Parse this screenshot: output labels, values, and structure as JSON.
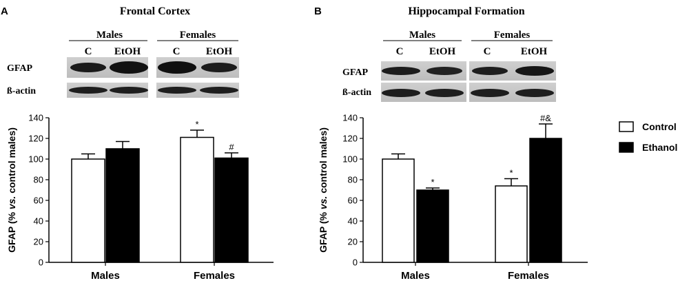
{
  "panels": [
    {
      "letter": "A",
      "title": "Frontal Cortex",
      "blot": {
        "groups": [
          "Males",
          "Females"
        ],
        "lanes": [
          "C",
          "EtOH",
          "C",
          "EtOH"
        ],
        "rows": [
          "GFAP",
          "ß-actin"
        ]
      }
    },
    {
      "letter": "B",
      "title": "Hippocampal Formation",
      "blot": {
        "groups": [
          "Males",
          "Females"
        ],
        "lanes": [
          "C",
          "EtOH",
          "C",
          "EtOH"
        ],
        "rows": [
          "GFAP",
          "ß-actin"
        ]
      }
    }
  ],
  "ylabel": {
    "prefix": "GFAP (% ",
    "italic": "vs.",
    "suffix": " control males)"
  },
  "legend": {
    "items": [
      {
        "label": "Control",
        "fill": "#ffffff"
      },
      {
        "label": "Ethanol",
        "fill": "#000000"
      }
    ]
  },
  "chart_data": [
    {
      "type": "bar",
      "title": "Frontal Cortex",
      "categories": [
        "Males",
        "Females"
      ],
      "series": [
        {
          "name": "Control",
          "color": "#ffffff",
          "values": [
            100,
            121
          ],
          "errors": [
            5,
            7
          ],
          "marks": [
            "",
            "*"
          ]
        },
        {
          "name": "Ethanol",
          "color": "#000000",
          "values": [
            110,
            101
          ],
          "errors": [
            7,
            5
          ],
          "marks": [
            "",
            "#"
          ]
        }
      ],
      "ylabel": "GFAP (% vs. control males)",
      "ylim": [
        0,
        140
      ],
      "yticks": [
        0,
        20,
        40,
        60,
        80,
        100,
        120,
        140
      ]
    },
    {
      "type": "bar",
      "title": "Hippocampal Formation",
      "categories": [
        "Males",
        "Females"
      ],
      "series": [
        {
          "name": "Control",
          "color": "#ffffff",
          "values": [
            100,
            74
          ],
          "errors": [
            5,
            7
          ],
          "marks": [
            "",
            "*"
          ]
        },
        {
          "name": "Ethanol",
          "color": "#000000",
          "values": [
            70,
            120
          ],
          "errors": [
            2,
            14
          ],
          "marks": [
            "*",
            "#&"
          ]
        }
      ],
      "ylabel": "GFAP (% vs. control males)",
      "ylim": [
        0,
        140
      ],
      "yticks": [
        0,
        20,
        40,
        60,
        80,
        100,
        120,
        140
      ]
    }
  ]
}
